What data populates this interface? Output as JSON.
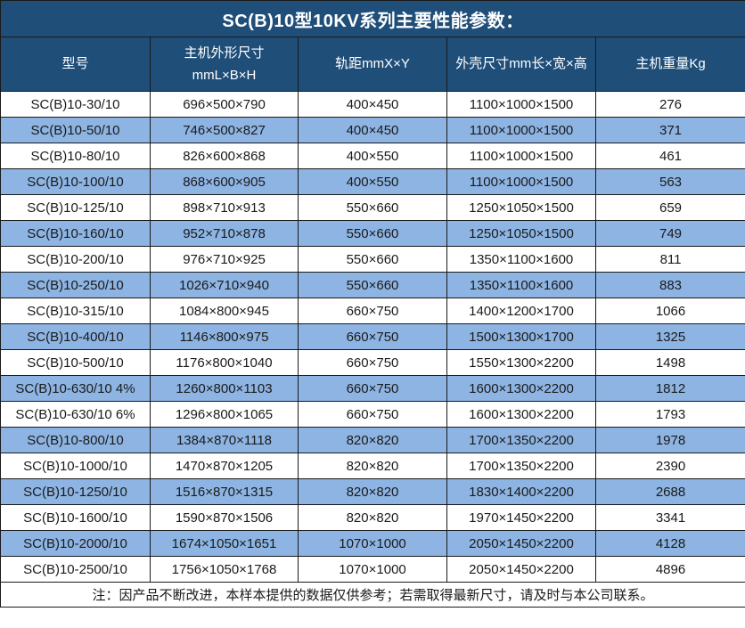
{
  "title": "SC(B)10型10KV系列主要性能参数：",
  "table": {
    "columns": [
      {
        "label": "型号"
      },
      {
        "label": "主机外形尺寸",
        "sublabel": "mmL×B×H"
      },
      {
        "label": "轨距mmX×Y"
      },
      {
        "label": "外壳尺寸mm长×宽×高"
      },
      {
        "label": "主机重量Kg"
      }
    ],
    "rows": [
      [
        "SC(B)10-30/10",
        "696×500×790",
        "400×450",
        "1100×1000×1500",
        "276"
      ],
      [
        "SC(B)10-50/10",
        "746×500×827",
        "400×450",
        "1100×1000×1500",
        "371"
      ],
      [
        "SC(B)10-80/10",
        "826×600×868",
        "400×550",
        "1100×1000×1500",
        "461"
      ],
      [
        "SC(B)10-100/10",
        "868×600×905",
        "400×550",
        "1100×1000×1500",
        "563"
      ],
      [
        "SC(B)10-125/10",
        "898×710×913",
        "550×660",
        "1250×1050×1500",
        "659"
      ],
      [
        "SC(B)10-160/10",
        "952×710×878",
        "550×660",
        "1250×1050×1500",
        "749"
      ],
      [
        "SC(B)10-200/10",
        "976×710×925",
        "550×660",
        "1350×1100×1600",
        "811"
      ],
      [
        "SC(B)10-250/10",
        "1026×710×940",
        "550×660",
        "1350×1100×1600",
        "883"
      ],
      [
        "SC(B)10-315/10",
        "1084×800×945",
        "660×750",
        "1400×1200×1700",
        "1066"
      ],
      [
        "SC(B)10-400/10",
        "1146×800×975",
        "660×750",
        "1500×1300×1700",
        "1325"
      ],
      [
        "SC(B)10-500/10",
        "1176×800×1040",
        "660×750",
        "1550×1300×2200",
        "1498"
      ],
      [
        "SC(B)10-630/10 4%",
        "1260×800×1103",
        "660×750",
        "1600×1300×2200",
        "1812"
      ],
      [
        "SC(B)10-630/10 6%",
        "1296×800×1065",
        "660×750",
        "1600×1300×2200",
        "1793"
      ],
      [
        "SC(B)10-800/10",
        "1384×870×1118",
        "820×820",
        "1700×1350×2200",
        "1978"
      ],
      [
        "SC(B)10-1000/10",
        "1470×870×1205",
        "820×820",
        "1700×1350×2200",
        "2390"
      ],
      [
        "SC(B)10-1250/10",
        "1516×870×1315",
        "820×820",
        "1830×1400×2200",
        "2688"
      ],
      [
        "SC(B)10-1600/10",
        "1590×870×1506",
        "820×820",
        "1970×1450×2200",
        "3341"
      ],
      [
        "SC(B)10-2000/10",
        "1674×1050×1651",
        "1070×1000",
        "2050×1450×2200",
        "4128"
      ],
      [
        "SC(B)10-2500/10",
        "1756×1050×1768",
        "1070×1000",
        "2050×1450×2200",
        "4896"
      ]
    ]
  },
  "note": "注：因产品不断改进，本样本提供的数据仅供参考；若需取得最新尺寸，请及时与本公司联系。",
  "colors": {
    "header_bg": "#1F4E79",
    "row_alt_bg": "#8DB4E2",
    "row_bg": "#FFFFFF",
    "border": "#1A1A1A",
    "header_text": "#FFFFFF",
    "body_text": "#1A1A1A"
  }
}
